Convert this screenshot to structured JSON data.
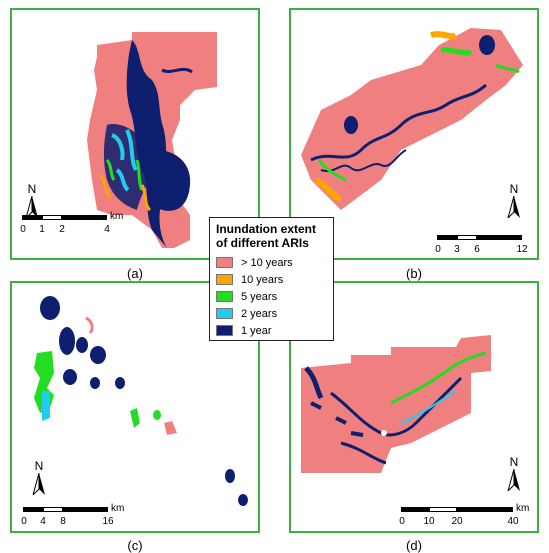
{
  "colors": {
    "gt10": "#f08080",
    "y10": "#ffa500",
    "y5": "#22dd22",
    "y2": "#22ccee",
    "y1": "#0d1f6e",
    "frame": "#3cb043"
  },
  "legend": {
    "title": "Inundation extent of different ARIs",
    "items": [
      {
        "label": "> 10 years",
        "color": "#f08080"
      },
      {
        "label": "10 years",
        "color": "#ffa500"
      },
      {
        "label": "5 years",
        "color": "#22dd22"
      },
      {
        "label": "2 years",
        "color": "#22ccee"
      },
      {
        "label": "1 year",
        "color": "#0d1f6e"
      }
    ]
  },
  "north_label": "N",
  "panels": [
    {
      "id": "a",
      "label": "(a)",
      "scale": {
        "ticks": [
          "0",
          "1",
          "2",
          "4"
        ],
        "unit": "km"
      }
    },
    {
      "id": "b",
      "label": "(b)",
      "scale": {
        "ticks": [
          "0",
          "3",
          "6",
          "12"
        ],
        "unit": "km"
      }
    },
    {
      "id": "c",
      "label": "(c)",
      "scale": {
        "ticks": [
          "0",
          "4",
          "8",
          "16"
        ],
        "unit": "km"
      }
    },
    {
      "id": "d",
      "label": "(d)",
      "scale": {
        "ticks": [
          "0",
          "10",
          "20",
          "40"
        ],
        "unit": "km"
      }
    }
  ]
}
